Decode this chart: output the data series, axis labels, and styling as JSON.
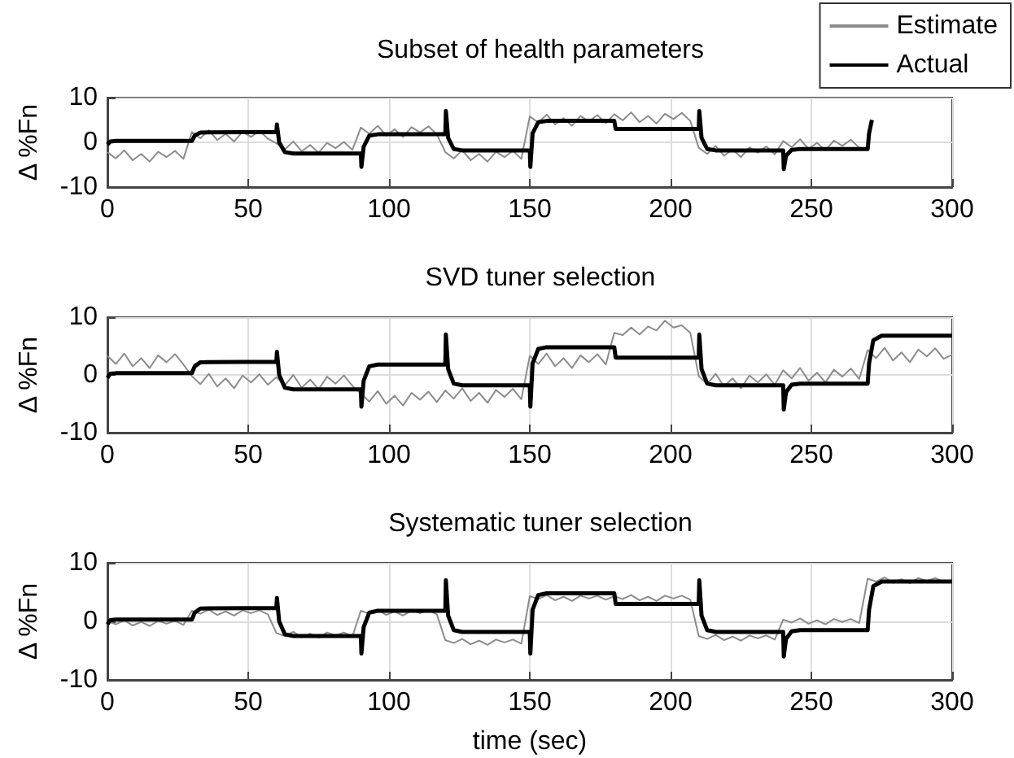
{
  "chart_data": [
    {
      "type": "line",
      "title": "Subset of health parameters",
      "ylabel": "Δ %Fn",
      "xlim": [
        0,
        300
      ],
      "xticks": [
        0,
        50,
        100,
        150,
        200,
        250,
        300
      ],
      "ylim": [
        -10,
        10
      ],
      "yticks": [
        -10,
        0,
        10
      ],
      "grid": true,
      "legend": "top right",
      "x": [
        0,
        3,
        6,
        9,
        12,
        15,
        18,
        21,
        24,
        27,
        30,
        33,
        36,
        39,
        42,
        45,
        48,
        51,
        54,
        57,
        60,
        63,
        66,
        69,
        72,
        75,
        78,
        81,
        84,
        87,
        90,
        93,
        96,
        99,
        102,
        105,
        108,
        111,
        114,
        117,
        120,
        123,
        126,
        129,
        132,
        135,
        138,
        141,
        144,
        147,
        150,
        153,
        156,
        159,
        162,
        165,
        168,
        171,
        174,
        177,
        180,
        183,
        186,
        189,
        192,
        195,
        198,
        201,
        204,
        207,
        210,
        213,
        216,
        219,
        222,
        225,
        228,
        231,
        234,
        237,
        240,
        243,
        246,
        249,
        252,
        255,
        258,
        261,
        264,
        267
      ],
      "series": [
        {
          "name": "Estimate",
          "color": "#8c8c8c",
          "values": [
            -2.2,
            -3.6,
            -1.8,
            -4.0,
            -2.6,
            -4.3,
            -2.1,
            -3.3,
            -1.9,
            -3.7,
            2.3,
            0.9,
            2.7,
            0.5,
            1.9,
            0.2,
            2.4,
            1.2,
            2.6,
            0.8,
            -0.2,
            -1.6,
            0.2,
            -2.0,
            -0.6,
            -2.3,
            -0.1,
            -1.3,
            0.1,
            -1.7,
            3.3,
            1.9,
            3.7,
            1.5,
            2.9,
            1.2,
            3.4,
            2.2,
            3.6,
            1.8,
            -2.2,
            -3.6,
            -1.8,
            -4.0,
            -2.6,
            -4.3,
            -2.1,
            -3.3,
            -1.9,
            -3.7,
            5.8,
            4.4,
            6.2,
            4.0,
            5.4,
            3.7,
            5.9,
            4.7,
            6.1,
            4.3,
            6.3,
            4.9,
            6.7,
            4.5,
            5.9,
            4.2,
            6.4,
            5.2,
            6.6,
            4.8,
            -1.2,
            -2.6,
            -0.8,
            -3.0,
            -1.6,
            -3.3,
            -1.1,
            -2.3,
            -0.9,
            -2.7,
            0.3,
            -1.1,
            0.7,
            -1.5,
            -0.1,
            -1.8,
            0.4,
            -0.8,
            0.6,
            -1.2
          ]
        },
        {
          "name": "Actual",
          "color": "#000000",
          "x": [
            0,
            1,
            3,
            30,
            31,
            33,
            60,
            60.2,
            61,
            63,
            66,
            90,
            90.2,
            91,
            93,
            96,
            120,
            120.2,
            121,
            123,
            126,
            150,
            150.2,
            151,
            153,
            156,
            180,
            180.5,
            210,
            210.2,
            211,
            213,
            216,
            240,
            240.2,
            241,
            243,
            246,
            270,
            270.5,
            271.5
          ],
          "values": [
            -0.5,
            0.2,
            0.3,
            0.3,
            1.5,
            2.2,
            2.3,
            4,
            0,
            -2.2,
            -2.5,
            -2.5,
            -5.5,
            -1,
            1.5,
            1.8,
            1.8,
            7,
            1,
            -1.5,
            -1.8,
            -1.8,
            -5.5,
            2,
            4.5,
            4.8,
            4.8,
            3,
            3,
            7,
            1,
            -1.5,
            -1.8,
            -1.8,
            -6,
            -3,
            -1.7,
            -1.5,
            -1.5,
            2,
            5
          ]
        }
      ]
    },
    {
      "type": "line",
      "title": "SVD tuner selection",
      "ylabel": "Δ %Fn",
      "xlim": [
        0,
        300
      ],
      "xticks": [
        0,
        50,
        100,
        150,
        200,
        250,
        300
      ],
      "ylim": [
        -10,
        10
      ],
      "yticks": [
        -10,
        0,
        10
      ],
      "grid": true,
      "x": [
        0,
        3,
        6,
        9,
        12,
        15,
        18,
        21,
        24,
        27,
        30,
        33,
        36,
        39,
        42,
        45,
        48,
        51,
        54,
        57,
        60,
        63,
        66,
        69,
        72,
        75,
        78,
        81,
        84,
        87,
        90,
        93,
        96,
        99,
        102,
        105,
        108,
        111,
        114,
        117,
        120,
        123,
        126,
        129,
        132,
        135,
        138,
        141,
        144,
        147,
        150,
        153,
        156,
        159,
        162,
        165,
        168,
        171,
        174,
        177,
        180,
        183,
        186,
        189,
        192,
        195,
        198,
        201,
        204,
        207,
        210,
        213,
        216,
        219,
        222,
        225,
        228,
        231,
        234,
        237,
        240,
        243,
        246,
        249,
        252,
        255,
        258,
        261,
        264,
        267,
        270,
        273,
        276,
        279,
        282,
        285,
        288,
        291,
        294,
        297,
        300
      ],
      "series": [
        {
          "color": "#8c8c8c",
          "values": [
            3.3,
            1.9,
            3.7,
            1.5,
            2.9,
            1.2,
            3.4,
            2.2,
            3.6,
            1.8,
            -0.2,
            -1.6,
            0.2,
            -2.0,
            -0.6,
            -2.3,
            -0.1,
            -1.3,
            0.1,
            -1.7,
            -0.4,
            -1.8,
            0.0,
            -2.2,
            -0.8,
            -2.5,
            -0.3,
            -1.5,
            -0.1,
            -1.9,
            -3.2,
            -4.6,
            -2.8,
            -5.0,
            -3.6,
            -5.3,
            -3.1,
            -4.3,
            -2.9,
            -4.7,
            -2.7,
            -4.1,
            -2.3,
            -4.5,
            -3.1,
            -4.8,
            -2.6,
            -3.8,
            -2.4,
            -4.2,
            3.3,
            1.9,
            3.7,
            1.5,
            2.9,
            1.2,
            3.4,
            2.2,
            3.6,
            1.8,
            7.3,
            6.9,
            8.2,
            7.0,
            8.4,
            7.7,
            9.4,
            8.2,
            8.6,
            7.3,
            -0.2,
            -1.6,
            0.2,
            -2.0,
            -0.6,
            -2.3,
            -0.1,
            -1.3,
            0.1,
            -1.7,
            0.8,
            -0.6,
            1.2,
            -1.0,
            0.4,
            -1.3,
            0.9,
            -0.3,
            1.1,
            -0.7,
            4.3,
            2.9,
            4.7,
            2.5,
            3.9,
            2.2,
            4.4,
            3.2,
            4.6,
            2.8,
            3.5
          ]
        },
        {
          "color": "#000000",
          "x": [
            0,
            1,
            3,
            30,
            31,
            33,
            60,
            60.2,
            61,
            63,
            66,
            90,
            90.2,
            91,
            93,
            96,
            120,
            120.2,
            121,
            123,
            126,
            150,
            150.2,
            151,
            153,
            156,
            180,
            180.5,
            210,
            210.2,
            211,
            213,
            216,
            240,
            240.2,
            241,
            243,
            246,
            270,
            270.5,
            272,
            275,
            300
          ],
          "values": [
            -0.5,
            0.2,
            0.3,
            0.3,
            1.5,
            2.2,
            2.3,
            4,
            0,
            -2.2,
            -2.5,
            -2.5,
            -5.5,
            -1,
            1.5,
            1.8,
            1.8,
            7,
            1,
            -1.5,
            -1.8,
            -1.8,
            -5.5,
            2,
            4.5,
            4.8,
            4.8,
            3,
            3,
            7,
            1,
            -1.5,
            -1.8,
            -1.8,
            -6,
            -3,
            -1.7,
            -1.5,
            -1.5,
            2,
            6,
            6.8,
            6.8
          ]
        }
      ]
    },
    {
      "type": "line",
      "title": "Systematic tuner selection",
      "xlabel": "time (sec)",
      "ylabel": "Δ %Fn",
      "xlim": [
        0,
        300
      ],
      "xticks": [
        0,
        50,
        100,
        150,
        200,
        250,
        300
      ],
      "ylim": [
        -10,
        10
      ],
      "yticks": [
        -10,
        0,
        10
      ],
      "grid": true,
      "x": [
        0,
        3,
        6,
        9,
        12,
        15,
        18,
        21,
        24,
        27,
        30,
        33,
        36,
        39,
        42,
        45,
        48,
        51,
        54,
        57,
        60,
        63,
        66,
        69,
        72,
        75,
        78,
        81,
        84,
        87,
        90,
        93,
        96,
        99,
        102,
        105,
        108,
        111,
        114,
        117,
        120,
        123,
        126,
        129,
        132,
        135,
        138,
        141,
        144,
        147,
        150,
        153,
        156,
        159,
        162,
        165,
        168,
        171,
        174,
        177,
        180,
        183,
        186,
        189,
        192,
        195,
        198,
        201,
        204,
        207,
        210,
        213,
        216,
        219,
        222,
        225,
        228,
        231,
        234,
        237,
        240,
        243,
        246,
        249,
        252,
        255,
        258,
        261,
        264,
        267,
        270,
        273,
        276,
        279,
        282,
        285,
        288,
        291,
        294,
        297,
        300
      ],
      "series": [
        {
          "color": "#8c8c8c",
          "values": [
            0,
            -0.5,
            0.2,
            -0.7,
            -0.1,
            -0.8,
            0.1,
            -0.4,
            0.1,
            -0.6,
            1.8,
            1.3,
            2.0,
            1.1,
            1.7,
            1.0,
            1.9,
            1.4,
            1.9,
            1.2,
            -2.0,
            -2.5,
            -1.8,
            -2.7,
            -2.1,
            -2.8,
            -1.9,
            -2.4,
            -1.9,
            -2.6,
            1.8,
            1.3,
            2.0,
            1.1,
            1.7,
            1.0,
            1.9,
            1.4,
            1.9,
            1.2,
            -3.2,
            -3.7,
            -3.0,
            -3.9,
            -3.3,
            -4.0,
            -3.1,
            -3.6,
            -3.1,
            -3.8,
            4.3,
            3.8,
            4.5,
            3.6,
            4.2,
            3.5,
            4.4,
            3.9,
            4.4,
            3.7,
            4.3,
            3.8,
            4.5,
            3.6,
            4.2,
            3.5,
            4.4,
            3.9,
            4.4,
            3.7,
            -2.5,
            -3.0,
            -2.3,
            -3.2,
            -2.6,
            -3.3,
            -2.4,
            -2.9,
            -2.4,
            -3.1,
            0.3,
            -0.2,
            0.5,
            -0.4,
            0.2,
            -0.5,
            0.4,
            -0.1,
            0.4,
            -0.3,
            7.3,
            6.8,
            7.5,
            6.6,
            7.2,
            6.5,
            7.4,
            6.9,
            7.4,
            6.7,
            7.0
          ]
        },
        {
          "color": "#000000",
          "x": [
            0,
            1,
            3,
            30,
            31,
            33,
            60,
            60.2,
            61,
            63,
            66,
            90,
            90.2,
            91,
            93,
            96,
            120,
            120.2,
            121,
            123,
            126,
            150,
            150.2,
            151,
            153,
            156,
            180,
            180.5,
            210,
            210.2,
            211,
            213,
            216,
            240,
            240.2,
            241,
            243,
            246,
            270,
            270.5,
            272,
            275,
            300
          ],
          "values": [
            -0.5,
            0.2,
            0.3,
            0.3,
            1.5,
            2.2,
            2.3,
            4,
            0,
            -2.2,
            -2.5,
            -2.5,
            -5.5,
            -1,
            1.5,
            1.8,
            1.8,
            7,
            1,
            -1.5,
            -1.8,
            -1.8,
            -5.5,
            2,
            4.5,
            4.8,
            4.8,
            3,
            3,
            7,
            1,
            -1.5,
            -1.8,
            -1.8,
            -6,
            -3,
            -1.7,
            -1.5,
            -1.5,
            2,
            6,
            6.8,
            6.8
          ]
        }
      ]
    }
  ]
}
